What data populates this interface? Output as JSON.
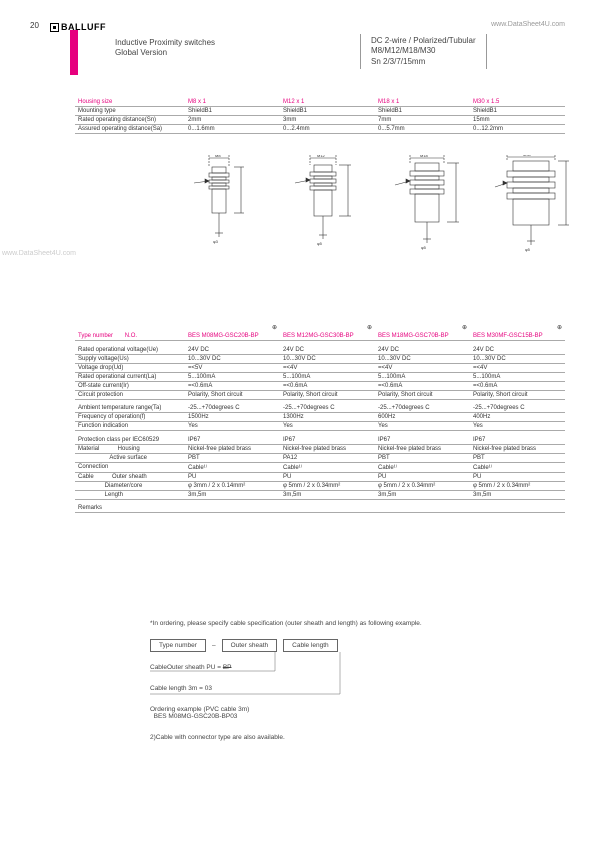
{
  "header": {
    "title1": "Inductive Proximity switches",
    "title2": "Global Version",
    "right1": "DC 2-wire / Polarized/Tubular",
    "right2": "M8/M12/M18/M30",
    "right3": "Sn  2/3/7/15mm"
  },
  "watermark_left": "www.DataSheet4U.com",
  "watermark_right": "www.DataSheet4U.com",
  "page_number": "20",
  "logo": "BALLUFF",
  "spec": {
    "rows": [
      {
        "label": "Housing size",
        "c1": "M8 x 1",
        "c2": "M12 x 1",
        "c3": "M18 x 1",
        "c4": "M30 x 1.5",
        "header": true
      },
      {
        "label": "Mounting type",
        "c1": "ShieldB1",
        "c2": "ShieldB1",
        "c3": "ShieldB1",
        "c4": "ShieldB1"
      },
      {
        "label": "Rated operating distance(Sn)",
        "c1": "2mm",
        "c2": "3mm",
        "c3": "7mm",
        "c4": "15mm"
      },
      {
        "label": "Assured operating distance(Sa)",
        "c1": "0...1.6mm",
        "c2": "0...2.4mm",
        "c3": "0...5.7mm",
        "c4": "0...12.2mm"
      }
    ]
  },
  "type": {
    "type_label": "Type number       N.O.",
    "parts": [
      "BES M08MG-GSC20B-BP",
      "BES M12MG-GSC30B-BP",
      "BES M18MG-GSC70B-BP",
      "BES M30MF-GSC15B-BP"
    ],
    "groups": [
      [
        {
          "label": "Rated operational voltage(Ue)",
          "v": [
            "24V DC",
            "24V DC",
            "24V DC",
            "24V DC"
          ]
        },
        {
          "label": "Supply voltage(Us)",
          "v": [
            "10...30V DC",
            "10...30V DC",
            "10...30V DC",
            "10...30V DC"
          ]
        },
        {
          "label": "Voltage drop(Ud)",
          "v": [
            "=<5V",
            "=<4V",
            "=<4V",
            "=<4V"
          ]
        },
        {
          "label": "Rated operational current(La)",
          "v": [
            "5...100mA",
            "5...100mA",
            "5...100mA",
            "5...100mA"
          ]
        },
        {
          "label": "Off-state current(Ir)",
          "v": [
            "=<0.6mA",
            "=<0.6mA",
            "=<0.6mA",
            "=<0.6mA"
          ]
        },
        {
          "label": "Circuit protection",
          "v": [
            "Polarity, Short circuit",
            "Polarity, Short circuit",
            "Polarity, Short circuit",
            "Polarity, Short circuit"
          ]
        }
      ],
      [
        {
          "label": "Ambient temperature range(Ta)",
          "v": [
            "-25...+70degrees C",
            "-25...+70degrees C",
            "-25...+70degrees C",
            "-25...+70degrees C"
          ]
        },
        {
          "label": "Frequency of operation(f)",
          "v": [
            "1500Hz",
            "1300Hz",
            "600Hz",
            "400Hz"
          ]
        },
        {
          "label": "Function indication",
          "v": [
            "Yes",
            "Yes",
            "Yes",
            "Yes"
          ]
        }
      ],
      [
        {
          "label": "Protection class per IEC60529",
          "v": [
            "IP67",
            "IP67",
            "IP67",
            "IP67"
          ]
        },
        {
          "label": "Material           Housing",
          "v": [
            "Nickel-free plated brass",
            "Nickel-free plated brass",
            "Nickel-free plated brass",
            "Nickel-free plated brass"
          ]
        },
        {
          "label": "                   Active surface",
          "v": [
            "PBT",
            "PA12",
            "PBT",
            "PBT"
          ]
        },
        {
          "label": "Connection",
          "v": [
            "Cable¹⁾",
            "Cable¹⁾",
            "Cable¹⁾",
            "Cable¹⁾"
          ]
        },
        {
          "label": "Cable           Outer sheath",
          "v": [
            "PU",
            "PU",
            "PU",
            "PU"
          ]
        },
        {
          "label": "                Diameter/core",
          "v": [
            "φ 3mm / 2 x 0.14mm²",
            "φ 5mm / 2 x 0.34mm²",
            "φ 5mm / 2 x 0.34mm²",
            "φ 5mm / 2 x 0.34mm²"
          ]
        },
        {
          "label": "                Length",
          "v": [
            "3m,5m",
            "3m,5m",
            "3m,5m",
            "3m,5m"
          ]
        }
      ],
      [
        {
          "label": "Remarks",
          "v": [
            "",
            "",
            "",
            ""
          ]
        }
      ]
    ]
  },
  "ordering": {
    "note": "*In ordering, please specify cable specification (outer sheath and length) as following example.",
    "box1": "Type number",
    "dash": "–",
    "box2": "Outer sheath",
    "box3": "Cable length",
    "line1a": "CableOuter sheath  PU  = ",
    "line1b": "BP",
    "line2": "Cable length   3m  = 03",
    "example1": "Ordering example (PVC cable 3m)",
    "example2": "  BES M08MG-GSC20B-BP03",
    "footnote2": "2)Cable with connector type are also available."
  }
}
